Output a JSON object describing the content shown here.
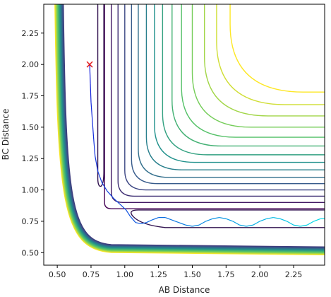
{
  "chart_data": {
    "type": "contour",
    "title": "",
    "xlabel": "AB Distance",
    "ylabel": "BC Distance",
    "xlim": [
      0.4,
      2.48
    ],
    "ylim": [
      0.4,
      2.48
    ],
    "xticks": [
      0.5,
      0.75,
      1.0,
      1.25,
      1.5,
      1.75,
      2.0,
      2.25
    ],
    "xtick_labels": [
      "0.50",
      "0.75",
      "1.00",
      "1.25",
      "1.50",
      "1.75",
      "2.00",
      "2.25"
    ],
    "yticks": [
      0.5,
      0.75,
      1.0,
      1.25,
      1.5,
      1.75,
      2.0,
      2.25
    ],
    "ytick_labels": [
      "0.50",
      "0.75",
      "1.00",
      "1.25",
      "1.50",
      "1.75",
      "2.00",
      "2.25"
    ],
    "grid": false,
    "colormap": [
      "#440154",
      "#3b528b",
      "#21918c",
      "#5ec962",
      "#fde725"
    ],
    "contours": {
      "asymptote_y": [
        0.85,
        0.9,
        0.95,
        1.0,
        1.05,
        1.1,
        1.16,
        1.22,
        1.28,
        1.35,
        1.42,
        1.5,
        1.59,
        1.68,
        1.78
      ],
      "asymptote_x": [
        0.85,
        0.9,
        0.95,
        1.0,
        1.05,
        1.1,
        1.16,
        1.22,
        1.28,
        1.35,
        1.42,
        1.5,
        1.59,
        1.68,
        1.78
      ],
      "wall_offsets": [
        0.06,
        0.072,
        0.084,
        0.096,
        0.108,
        0.12,
        0.132,
        0.144,
        0.156,
        0.168,
        0.18,
        0.192,
        0.204,
        0.216,
        0.228,
        0.24
      ]
    },
    "trajectory": {
      "x": [
        0.74,
        0.745,
        0.75,
        0.76,
        0.77,
        0.78,
        0.8,
        0.83,
        0.87,
        0.92,
        0.97,
        1.01,
        1.04,
        1.08,
        1.12,
        1.16,
        1.2,
        1.25,
        1.3,
        1.35,
        1.4,
        1.45,
        1.5,
        1.55,
        1.6,
        1.65,
        1.7,
        1.75,
        1.8,
        1.85,
        1.9,
        1.95,
        2.0,
        2.05,
        2.1,
        2.15,
        2.2,
        2.25,
        2.3,
        2.35,
        2.4,
        2.45,
        2.48
      ],
      "y": [
        2.0,
        1.85,
        1.7,
        1.55,
        1.4,
        1.27,
        1.15,
        1.06,
        0.99,
        0.93,
        0.88,
        0.84,
        0.79,
        0.74,
        0.73,
        0.74,
        0.76,
        0.78,
        0.78,
        0.76,
        0.74,
        0.72,
        0.71,
        0.72,
        0.75,
        0.77,
        0.78,
        0.77,
        0.75,
        0.72,
        0.71,
        0.72,
        0.75,
        0.77,
        0.78,
        0.77,
        0.75,
        0.72,
        0.71,
        0.72,
        0.75,
        0.77,
        0.77
      ]
    },
    "start_marker": {
      "x": 0.74,
      "y": 2.0,
      "symbol": "x",
      "color": "#e41a1c"
    }
  }
}
